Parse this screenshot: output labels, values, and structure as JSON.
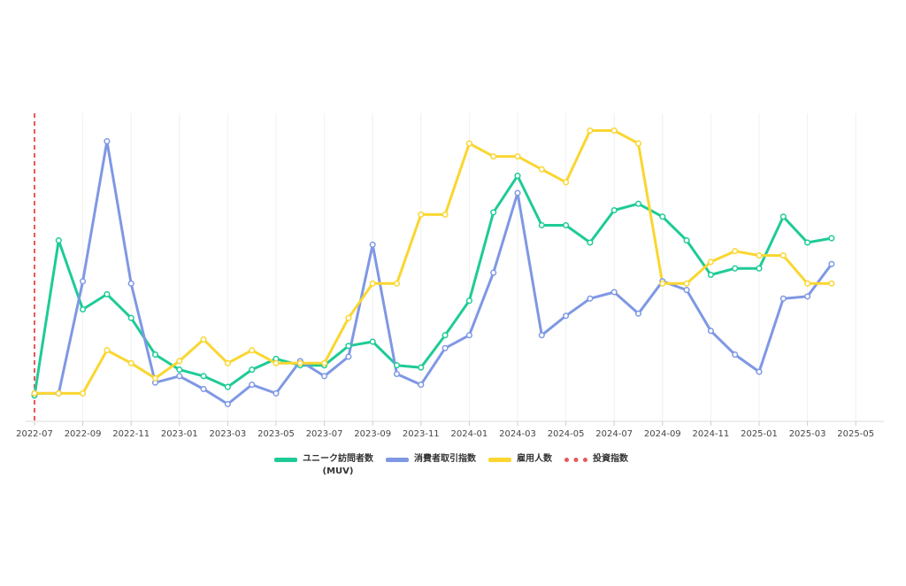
{
  "chart_data": {
    "type": "line",
    "x": [
      "2022-07",
      "2022-08",
      "2022-09",
      "2022-10",
      "2022-11",
      "2022-12",
      "2023-01",
      "2023-02",
      "2023-03",
      "2023-04",
      "2023-05",
      "2023-06",
      "2023-07",
      "2023-08",
      "2023-09",
      "2023-10",
      "2023-11",
      "2023-12",
      "2024-01",
      "2024-02",
      "2024-03",
      "2024-04",
      "2024-05",
      "2024-06",
      "2024-07",
      "2024-08",
      "2024-09",
      "2024-10",
      "2024-11",
      "2024-12",
      "2025-01",
      "2025-02",
      "2025-03",
      "2025-04"
    ],
    "tick_labels": [
      "2022-07",
      "2022-09",
      "2022-11",
      "2023-01",
      "2023-03",
      "2023-05",
      "2023-07",
      "2023-09",
      "2023-11",
      "2024-01",
      "2024-03",
      "2024-05",
      "2024-07",
      "2024-09",
      "2024-11",
      "2025-01",
      "2025-03",
      "2025-05"
    ],
    "series": [
      {
        "name": "ユニーク訪問者数\n(MUV)",
        "color": "#1ecb96",
        "values": [
          4,
          76,
          44,
          51,
          40,
          23,
          16,
          13,
          8,
          16,
          21,
          18,
          18,
          27,
          29,
          18,
          17,
          32,
          48,
          89,
          106,
          83,
          83,
          75,
          90,
          93,
          87,
          76,
          60,
          63,
          63,
          87,
          75,
          77
        ]
      },
      {
        "name": "消費者取引指数",
        "color": "#7f98e4",
        "values": [
          5,
          5,
          57,
          122,
          56,
          10,
          13,
          7,
          0,
          9,
          5,
          20,
          13,
          22,
          74,
          14,
          9,
          26,
          32,
          61,
          98,
          32,
          41,
          49,
          52,
          42,
          57,
          53,
          34,
          23,
          15,
          49,
          50,
          65
        ]
      },
      {
        "name": "雇用人数",
        "color": "#fad630",
        "values": [
          5,
          5,
          5,
          25,
          19,
          12,
          20,
          30,
          19,
          25,
          19,
          19,
          19,
          40,
          56,
          56,
          88,
          88,
          121,
          115,
          115,
          109,
          103,
          127,
          127,
          121,
          56,
          56,
          66,
          71,
          69,
          69,
          56,
          56
        ]
      },
      {
        "name": "投資指数",
        "color": "#e85858",
        "dashed": true,
        "x": "2022-07"
      }
    ],
    "ylim": [
      -8,
      135
    ],
    "grid": "vertical",
    "legend": "bottom-center"
  }
}
